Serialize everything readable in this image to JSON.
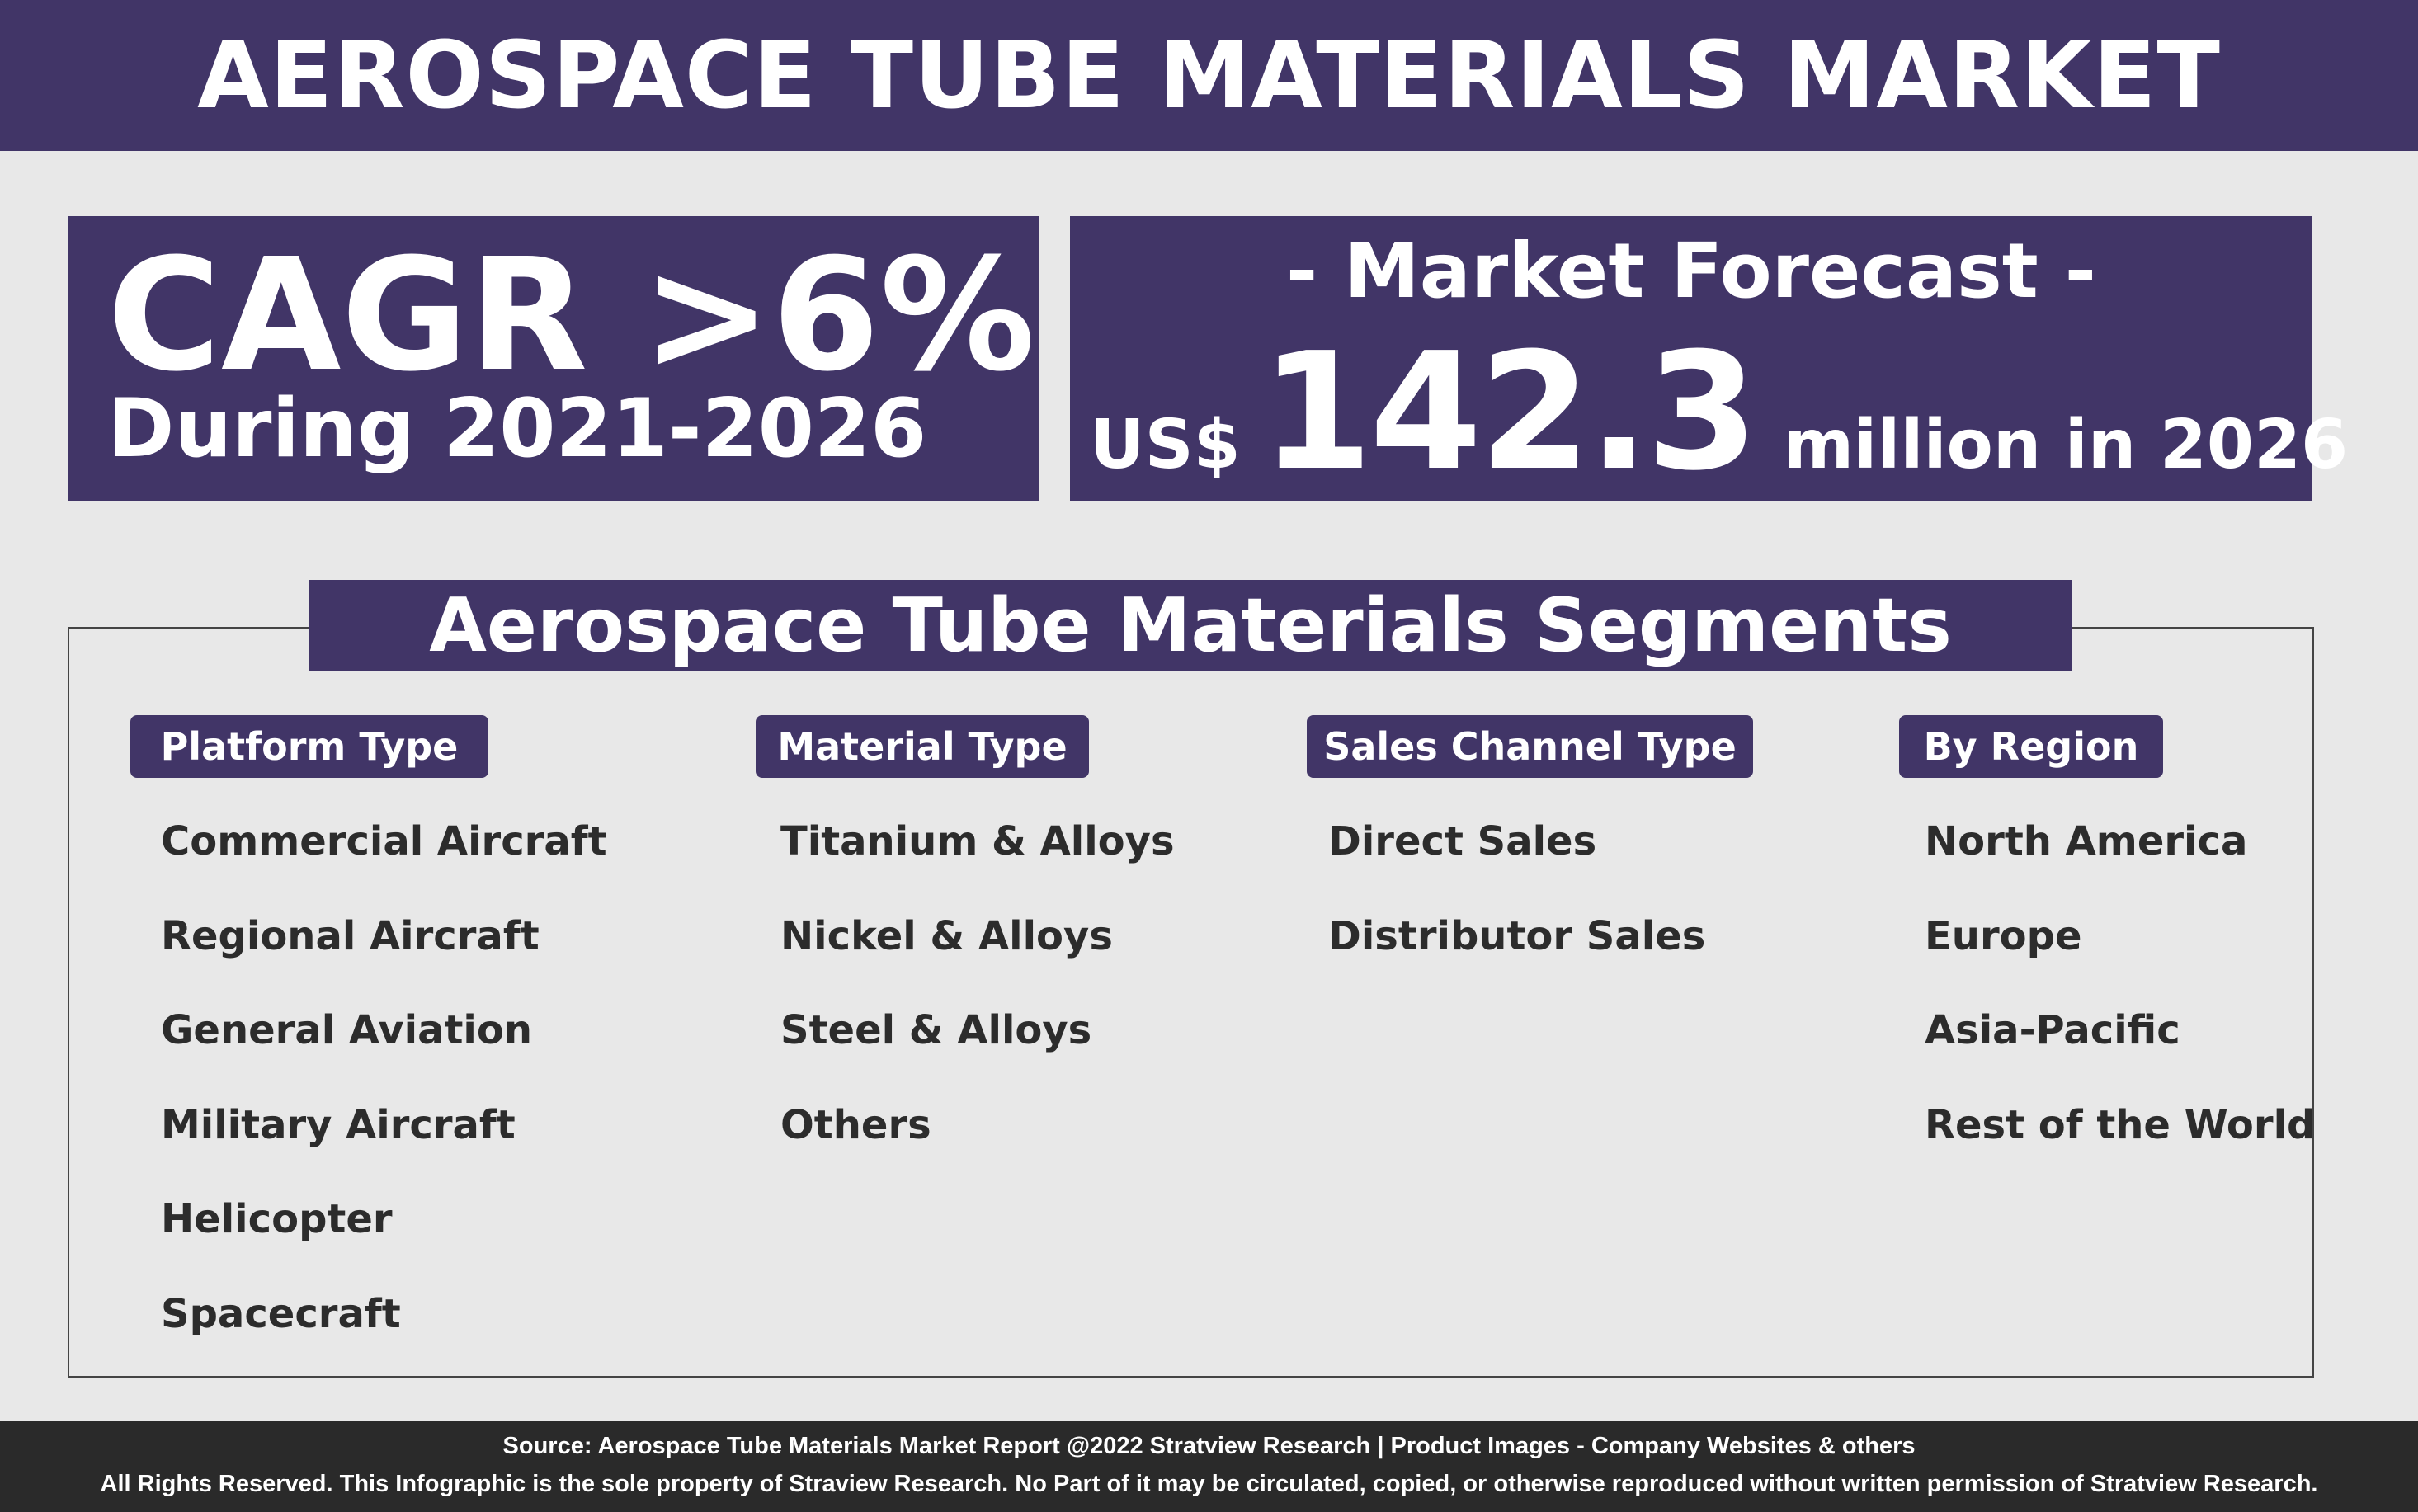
{
  "header": {
    "title": "AEROSPACE TUBE MATERIALS MARKET"
  },
  "cagr": {
    "value": "CAGR >6%",
    "period": "During 2021-2026"
  },
  "forecast": {
    "title": "- Market Forecast -",
    "currency": "US$",
    "amount": "142.3",
    "suffix": "million in 2026"
  },
  "segments": {
    "title": "Aerospace Tube Materials Segments",
    "columns": [
      {
        "label": "Platform Type",
        "items": [
          "Commercial Aircraft",
          "Regional Aircraft",
          "General Aviation",
          "Military Aircraft",
          "Helicopter",
          "Spacecraft"
        ]
      },
      {
        "label": "Material Type",
        "items": [
          "Titanium & Alloys",
          "Nickel & Alloys",
          "Steel & Alloys",
          "Others"
        ]
      },
      {
        "label": "Sales Channel Type",
        "items": [
          "Direct Sales",
          "Distributor Sales"
        ]
      },
      {
        "label": "By Region",
        "items": [
          "North America",
          "Europe",
          "Asia-Pacific",
          "Rest of the World"
        ]
      }
    ]
  },
  "footer": {
    "source": "Source: Aerospace Tube Materials Market Report @2022 Stratview Research | Product Images - Company Websites & others",
    "rights": "All Rights Reserved. This Infographic is the sole property of Straview Research. No Part of it may be circulated, copied, or otherwise reproduced without written permission of Stratview Research."
  },
  "colors": {
    "accent": "#413567",
    "background": "#e8e8e8",
    "footer": "#2a2a2a",
    "text": "#2c2c2c"
  }
}
